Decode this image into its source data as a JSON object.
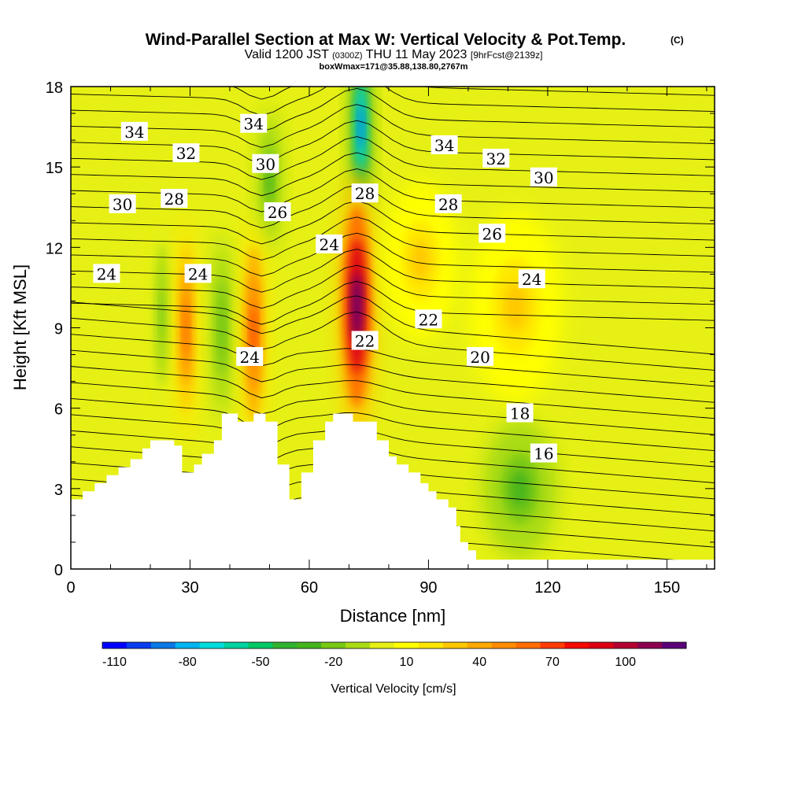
{
  "title": {
    "main": "Wind-Parallel Section at Max W: Vertical Velocity & Pot.Temp.",
    "copyright": "(C)",
    "valid_prefix": "Valid 1200 JST",
    "valid_utc": "(0300Z)",
    "valid_date": "THU 11 May 2023",
    "forecast": "[9hrFcst@2139z]",
    "box_info": "boxWmax=171@35.88,138.80,2767m"
  },
  "chart_data": {
    "type": "heatmap",
    "xlabel": "Distance [nm]",
    "ylabel": "Height [Kft MSL]",
    "xlim": [
      0,
      162
    ],
    "ylim": [
      0,
      18
    ],
    "x_ticks": [
      "0",
      "30",
      "60",
      "90",
      "120",
      "150"
    ],
    "y_ticks": [
      "0",
      "3",
      "6",
      "9",
      "12",
      "15",
      "18"
    ],
    "x_tick_values": [
      0,
      30,
      60,
      90,
      120,
      150
    ],
    "y_tick_values": [
      0,
      3,
      6,
      9,
      12,
      15,
      18
    ],
    "colorbar": {
      "label": "Vertical Velocity [cm/s]",
      "tick_labels": [
        "-110",
        "-80",
        "-50",
        "-20",
        "10",
        "40",
        "70",
        "100"
      ],
      "tick_values": [
        -110,
        -80,
        -50,
        -20,
        10,
        40,
        70,
        100
      ],
      "range": [
        -115,
        125
      ],
      "colors": [
        "#0000ff",
        "#0a3cf0",
        "#0a78e6",
        "#00b4f0",
        "#00dcdc",
        "#00d2a0",
        "#00c864",
        "#32b432",
        "#46b41e",
        "#78c814",
        "#aadc14",
        "#e6f014",
        "#ffff00",
        "#ffe600",
        "#ffc800",
        "#ffaa00",
        "#ff8c00",
        "#ff6e00",
        "#ff3c00",
        "#f50a00",
        "#dc0014",
        "#b40032",
        "#8c0050",
        "#5a0078"
      ]
    },
    "contours": {
      "variable": "Potential Temperature",
      "labels": [
        {
          "text": "34",
          "x": 16,
          "y": 16.3
        },
        {
          "text": "32",
          "x": 29,
          "y": 15.5
        },
        {
          "text": "30",
          "x": 13,
          "y": 13.6
        },
        {
          "text": "28",
          "x": 26,
          "y": 13.8
        },
        {
          "text": "24",
          "x": 9,
          "y": 11.0
        },
        {
          "text": "24",
          "x": 32,
          "y": 11.0
        },
        {
          "text": "24",
          "x": 45,
          "y": 7.9
        },
        {
          "text": "34",
          "x": 46,
          "y": 16.6
        },
        {
          "text": "30",
          "x": 49,
          "y": 15.1
        },
        {
          "text": "26",
          "x": 52,
          "y": 13.3
        },
        {
          "text": "24",
          "x": 65,
          "y": 12.1
        },
        {
          "text": "28",
          "x": 74,
          "y": 14.0
        },
        {
          "text": "22",
          "x": 74,
          "y": 8.5
        },
        {
          "text": "34",
          "x": 94,
          "y": 15.8
        },
        {
          "text": "32",
          "x": 107,
          "y": 15.3
        },
        {
          "text": "30",
          "x": 119,
          "y": 14.6
        },
        {
          "text": "28",
          "x": 95,
          "y": 13.6
        },
        {
          "text": "26",
          "x": 106,
          "y": 12.5
        },
        {
          "text": "24",
          "x": 116,
          "y": 10.8
        },
        {
          "text": "22",
          "x": 90,
          "y": 9.3
        },
        {
          "text": "20",
          "x": 103,
          "y": 7.9
        },
        {
          "text": "18",
          "x": 113,
          "y": 5.8
        },
        {
          "text": "16",
          "x": 119,
          "y": 4.3
        }
      ]
    },
    "terrain_kft": [
      [
        0,
        2.6
      ],
      [
        3,
        2.6
      ],
      [
        3,
        2.9
      ],
      [
        6,
        2.9
      ],
      [
        6,
        3.2
      ],
      [
        9,
        3.2
      ],
      [
        9,
        3.5
      ],
      [
        12,
        3.5
      ],
      [
        12,
        3.8
      ],
      [
        15,
        3.8
      ],
      [
        15,
        4.1
      ],
      [
        18,
        4.1
      ],
      [
        18,
        4.5
      ],
      [
        20,
        4.5
      ],
      [
        20,
        4.8
      ],
      [
        26,
        4.8
      ],
      [
        26,
        4.6
      ],
      [
        28,
        4.6
      ],
      [
        28,
        3.6
      ],
      [
        31,
        3.6
      ],
      [
        31,
        3.9
      ],
      [
        33,
        3.9
      ],
      [
        33,
        4.3
      ],
      [
        36,
        4.3
      ],
      [
        36,
        4.8
      ],
      [
        38,
        4.8
      ],
      [
        38,
        5.8
      ],
      [
        42,
        5.8
      ],
      [
        42,
        5.5
      ],
      [
        46,
        5.5
      ],
      [
        46,
        5.8
      ],
      [
        49,
        5.8
      ],
      [
        49,
        5.5
      ],
      [
        52,
        5.5
      ],
      [
        52,
        3.9
      ],
      [
        55,
        3.9
      ],
      [
        55,
        2.6
      ],
      [
        58,
        2.6
      ],
      [
        58,
        3.6
      ],
      [
        61,
        3.6
      ],
      [
        61,
        4.8
      ],
      [
        64,
        4.8
      ],
      [
        64,
        5.5
      ],
      [
        66,
        5.5
      ],
      [
        66,
        5.8
      ],
      [
        71,
        5.8
      ],
      [
        71,
        5.5
      ],
      [
        77,
        5.5
      ],
      [
        77,
        4.8
      ],
      [
        80,
        4.8
      ],
      [
        80,
        4.2
      ],
      [
        82,
        4.2
      ],
      [
        82,
        3.9
      ],
      [
        85,
        3.9
      ],
      [
        85,
        3.6
      ],
      [
        88,
        3.6
      ],
      [
        88,
        3.2
      ],
      [
        90,
        3.2
      ],
      [
        90,
        2.9
      ],
      [
        92,
        2.9
      ],
      [
        92,
        2.6
      ],
      [
        95,
        2.6
      ],
      [
        95,
        2.3
      ],
      [
        97,
        2.3
      ],
      [
        97,
        1.6
      ],
      [
        98,
        1.6
      ],
      [
        98,
        1.0
      ],
      [
        100,
        1.0
      ],
      [
        100,
        0.7
      ],
      [
        102,
        0.7
      ],
      [
        102,
        0.35
      ],
      [
        162,
        0.35
      ]
    ],
    "updrafts": [
      {
        "x": 72,
        "y": 9.8,
        "rx": 4,
        "ry": 4.2,
        "peak": 120
      },
      {
        "x": 46,
        "y": 8.8,
        "rx": 2.6,
        "ry": 3.6,
        "peak": 70
      },
      {
        "x": 29,
        "y": 9.0,
        "rx": 2.3,
        "ry": 3.5,
        "peak": 60
      },
      {
        "x": 112,
        "y": 9.8,
        "rx": 10,
        "ry": 3,
        "peak": 25
      },
      {
        "x": 88,
        "y": 11.5,
        "rx": 8,
        "ry": 2.5,
        "peak": 25
      }
    ],
    "downdrafts": [
      {
        "x": 73,
        "y": 16.5,
        "rx": 2.3,
        "ry": 2.8,
        "peak": -90
      },
      {
        "x": 50,
        "y": 14.5,
        "rx": 2.5,
        "ry": 2.3,
        "peak": -30
      },
      {
        "x": 113,
        "y": 3.0,
        "rx": 8,
        "ry": 2.2,
        "peak": -30
      },
      {
        "x": 38,
        "y": 9.0,
        "rx": 2.2,
        "ry": 3,
        "peak": -25
      },
      {
        "x": 23,
        "y": 9.5,
        "rx": 2,
        "ry": 3,
        "peak": -20
      }
    ]
  }
}
